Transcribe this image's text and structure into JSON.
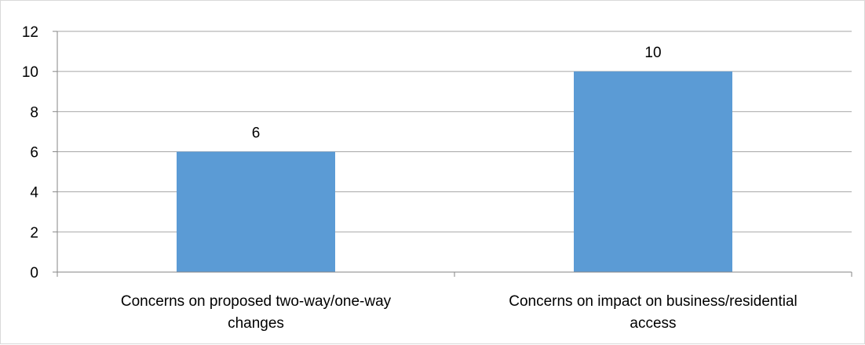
{
  "chart_data": {
    "type": "bar",
    "categories": [
      [
        "Concerns on proposed two-way/one-way",
        "changes"
      ],
      [
        "Concerns on impact on business/residential",
        "access"
      ]
    ],
    "values": [
      6,
      10
    ],
    "data_labels": [
      "6",
      "10"
    ],
    "title": "",
    "xlabel": "",
    "ylabel": "",
    "ylim": [
      0,
      12
    ],
    "yticks": [
      0,
      2,
      4,
      6,
      8,
      10,
      12
    ],
    "grid": true,
    "legend": "none",
    "bar_color": "#5b9bd5",
    "grid_color": "#a6a6a6"
  }
}
